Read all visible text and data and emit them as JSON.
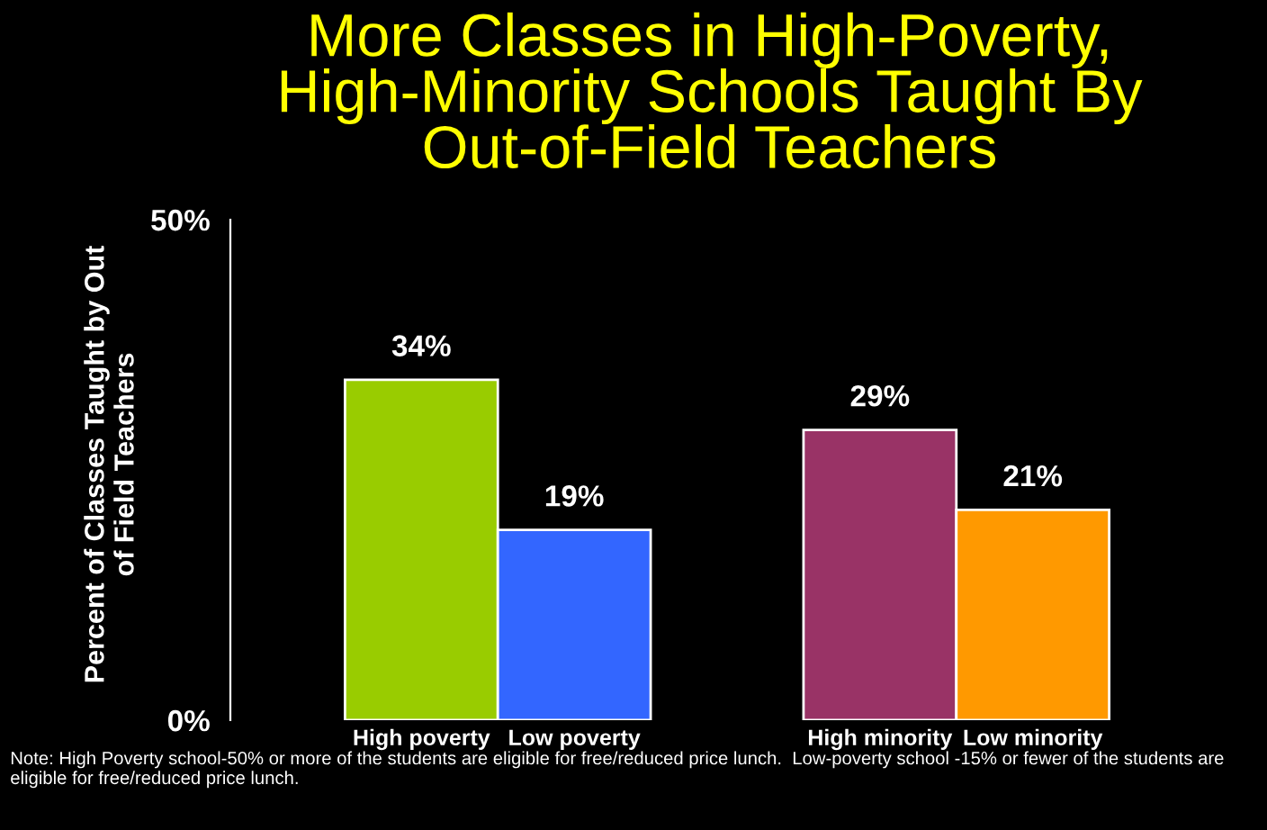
{
  "chart_data": {
    "type": "bar",
    "title": "More Classes in High-Poverty, High-Minority Schools Taught By Out-of-Field Teachers",
    "ylabel": "Percent of Classes Taught by Out of Field Teachers",
    "categories": [
      "High poverty",
      "Low poverty",
      null,
      "High minority",
      "Low minority"
    ],
    "values": [
      34,
      19,
      null,
      29,
      21
    ],
    "colors": [
      "#99cc00",
      "#3366ff",
      "#000000",
      "#993366",
      "#ff9900"
    ],
    "value_labels": [
      "34%",
      "19%",
      null,
      "29%",
      "21%"
    ],
    "ylim": [
      0,
      50
    ],
    "yticks": [
      {
        "value": 0,
        "label": "0%"
      },
      {
        "value": 50,
        "label": "50%"
      }
    ],
    "grid": false,
    "annotations": [
      "Note: High Poverty school-50% or more of the students are eligible for free/reduced price lunch.  Low-poverty school -15% or fewer of the students are eligible for free/reduced price lunch."
    ]
  }
}
